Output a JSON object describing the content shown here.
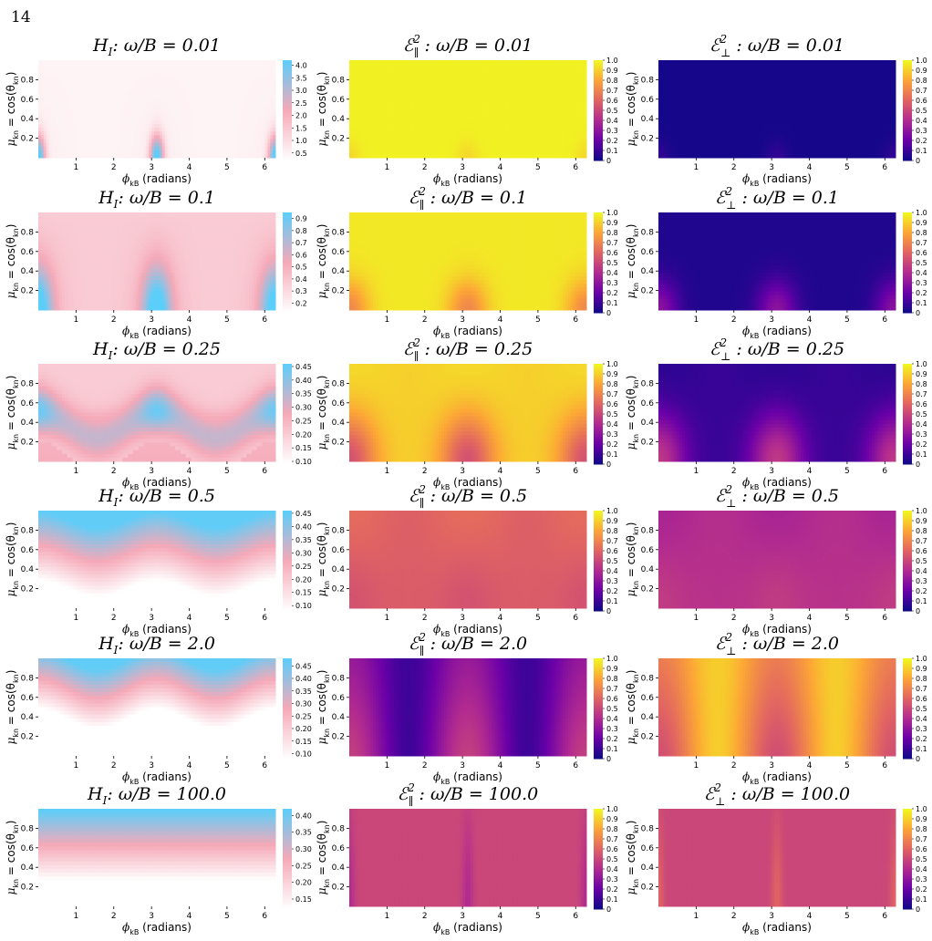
{
  "page": {
    "number": "14"
  },
  "colormaps": {
    "hi": [
      "#ffffff",
      "#f5a9b8",
      "#5bcefa"
    ],
    "plasma": [
      "#0d0887",
      "#6a00a8",
      "#b12a90",
      "#e16462",
      "#fca636",
      "#f0f921"
    ]
  },
  "chart_data": [
    {
      "type": "heatmap",
      "row": 0,
      "col": 0,
      "quantity": "H_I",
      "title": {
        "symbol": "H",
        "sub": "I",
        "rest": ":  ω/B = 0.01"
      },
      "xlabel": {
        "symbol": "ϕ",
        "sub": "kB",
        "text": "(radians)"
      },
      "ylabel": {
        "symbol": "μ",
        "sub": "kn",
        "text": "= cos(θ",
        "sub2": "kn",
        "close": ")"
      },
      "x_ticks": [
        "1",
        "2",
        "3",
        "4",
        "5",
        "6"
      ],
      "y_ticks": [
        "0.2",
        "0.4",
        "0.6",
        "0.8"
      ],
      "cbar_ticks": [
        "4.0",
        "3.5",
        "3.0",
        "2.5",
        "2.0",
        "1.5",
        "1.0",
        "0.5"
      ],
      "cbar_range": [
        0.2,
        4.2
      ],
      "colormap": "hi",
      "pattern": "hi",
      "params": {
        "base": 0.07,
        "wave": 0.02,
        "spot": 1.0,
        "sx": 0.12,
        "sy": 0.16,
        "amp": 0,
        "center": 0.5,
        "width": 0.1
      }
    },
    {
      "type": "heatmap",
      "row": 0,
      "col": 1,
      "quantity": "E_par^2",
      "title": {
        "symbol": "ℰ",
        "sup": "2",
        "sub": "∥",
        "rest": ":  ω/B = 0.01"
      },
      "xlabel": {
        "symbol": "ϕ",
        "sub": "kB",
        "text": "(radians)"
      },
      "ylabel": {
        "symbol": "μ",
        "sub": "kn",
        "text": "= cos(θ",
        "sub2": "kn",
        "close": ")"
      },
      "x_ticks": [
        "1",
        "2",
        "3",
        "4",
        "5",
        "6"
      ],
      "y_ticks": [
        "0.2",
        "0.4",
        "0.6",
        "0.8"
      ],
      "cbar_ticks": [
        "1.0",
        "0.9",
        "0.8",
        "0.7",
        "0.6",
        "0.5",
        "0.4",
        "0.3",
        "0.2",
        "0.1",
        "0"
      ],
      "cbar_range": [
        0,
        1
      ],
      "colormap": "plasma",
      "pattern": "pl",
      "params": {
        "base": 0.98,
        "dip": 0.06,
        "sx": 0.1,
        "sy": 0.12,
        "gbase": 0,
        "gamp": 0,
        "w": 0.3
      }
    },
    {
      "type": "heatmap",
      "row": 0,
      "col": 2,
      "quantity": "E_perp^2",
      "title": {
        "symbol": "ℰ",
        "sup": "2",
        "sub": "⊥",
        "rest": ":  ω/B = 0.01"
      },
      "xlabel": {
        "symbol": "ϕ",
        "sub": "kB",
        "text": "(radians)"
      },
      "ylabel": {
        "symbol": "μ",
        "sub": "kn",
        "text": "= cos(θ",
        "sub2": "kn",
        "close": ")"
      },
      "x_ticks": [
        "1",
        "2",
        "3",
        "4",
        "5",
        "6"
      ],
      "y_ticks": [
        "0.2",
        "0.4",
        "0.6",
        "0.8"
      ],
      "cbar_ticks": [
        "1.0",
        "0.9",
        "0.8",
        "0.7",
        "0.6",
        "0.5",
        "0.4",
        "0.3",
        "0.2",
        "0.1",
        "0"
      ],
      "cbar_range": [
        0,
        1
      ],
      "colormap": "plasma",
      "pattern": "pl",
      "params": {
        "base": 0.02,
        "dip": -0.06,
        "sx": 0.1,
        "sy": 0.12,
        "gbase": 0,
        "gamp": 0,
        "w": 0.3
      }
    },
    {
      "type": "heatmap",
      "row": 1,
      "col": 0,
      "quantity": "H_I",
      "title": {
        "symbol": "H",
        "sub": "I",
        "rest": ":  ω/B = 0.1"
      },
      "xlabel": {
        "symbol": "ϕ",
        "sub": "kB",
        "text": "(radians)"
      },
      "ylabel": {
        "symbol": "μ",
        "sub": "kn",
        "text": "= cos(θ",
        "sub2": "kn",
        "close": ")"
      },
      "x_ticks": [
        "1",
        "2",
        "3",
        "4",
        "5",
        "6"
      ],
      "y_ticks": [
        "0.2",
        "0.4",
        "0.6",
        "0.8"
      ],
      "cbar_ticks": [
        "0.9",
        "0.8",
        "0.7",
        "0.6",
        "0.5",
        "0.4",
        "0.3",
        "0.2"
      ],
      "cbar_range": [
        0.12,
        0.95
      ],
      "colormap": "hi",
      "pattern": "hi",
      "params": {
        "base": 0.3,
        "wave": 0.12,
        "spot": 0.75,
        "sx": 0.25,
        "sy": 0.3,
        "amp": 0,
        "center": 0.5,
        "width": 0.1
      }
    },
    {
      "type": "heatmap",
      "row": 1,
      "col": 1,
      "quantity": "E_par^2",
      "title": {
        "symbol": "ℰ",
        "sup": "2",
        "sub": "∥",
        "rest": ":  ω/B = 0.1"
      },
      "xlabel": {
        "symbol": "ϕ",
        "sub": "kB",
        "text": "(radians)"
      },
      "ylabel": {
        "symbol": "μ",
        "sub": "kn",
        "text": "= cos(θ",
        "sub2": "kn",
        "close": ")"
      },
      "x_ticks": [
        "1",
        "2",
        "3",
        "4",
        "5",
        "6"
      ],
      "y_ticks": [
        "0.2",
        "0.4",
        "0.6",
        "0.8"
      ],
      "cbar_ticks": [
        "1.0",
        "0.9",
        "0.8",
        "0.7",
        "0.6",
        "0.5",
        "0.4",
        "0.3",
        "0.2",
        "0.1",
        "0"
      ],
      "cbar_range": [
        0,
        1
      ],
      "colormap": "plasma",
      "pattern": "pl",
      "params": {
        "base": 0.96,
        "dip": 0.25,
        "sx": 0.18,
        "sy": 0.22,
        "gbase": 0,
        "gamp": 0,
        "w": 0.3
      }
    },
    {
      "type": "heatmap",
      "row": 1,
      "col": 2,
      "quantity": "E_perp^2",
      "title": {
        "symbol": "ℰ",
        "sup": "2",
        "sub": "⊥",
        "rest": ":  ω/B = 0.1"
      },
      "xlabel": {
        "symbol": "ϕ",
        "sub": "kB",
        "text": "(radians)"
      },
      "ylabel": {
        "symbol": "μ",
        "sub": "kn",
        "text": "= cos(θ",
        "sub2": "kn",
        "close": ")"
      },
      "x_ticks": [
        "1",
        "2",
        "3",
        "4",
        "5",
        "6"
      ],
      "y_ticks": [
        "0.2",
        "0.4",
        "0.6",
        "0.8"
      ],
      "cbar_ticks": [
        "1.0",
        "0.9",
        "0.8",
        "0.7",
        "0.6",
        "0.5",
        "0.4",
        "0.3",
        "0.2",
        "0.1",
        "0"
      ],
      "cbar_range": [
        0,
        1
      ],
      "colormap": "plasma",
      "pattern": "pl",
      "params": {
        "base": 0.04,
        "dip": -0.25,
        "sx": 0.18,
        "sy": 0.22,
        "gbase": 0,
        "gamp": 0,
        "w": 0.3
      }
    },
    {
      "type": "heatmap",
      "row": 2,
      "col": 0,
      "quantity": "H_I",
      "title": {
        "symbol": "H",
        "sub": "I",
        "rest": ":  ω/B = 0.25"
      },
      "xlabel": {
        "symbol": "ϕ",
        "sub": "kB",
        "text": "(radians)"
      },
      "ylabel": {
        "symbol": "μ",
        "sub": "kn",
        "text": "= cos(θ",
        "sub2": "kn",
        "close": ")"
      },
      "x_ticks": [
        "1",
        "2",
        "3",
        "4",
        "5",
        "6"
      ],
      "y_ticks": [
        "0.2",
        "0.4",
        "0.6",
        "0.8"
      ],
      "cbar_ticks": [
        "0.45",
        "0.40",
        "0.35",
        "0.30",
        "0.25",
        "0.20",
        "0.15",
        "0.10"
      ],
      "cbar_range": [
        0.09,
        0.46
      ],
      "colormap": "hi",
      "pattern": "band",
      "params": {
        "center": 0.38,
        "amp": 0.14,
        "width": 0.16,
        "top": 0.7,
        "bottom": 0.45,
        "low": 0.3,
        "high": 0.95
      }
    },
    {
      "type": "heatmap",
      "row": 2,
      "col": 1,
      "quantity": "E_par^2",
      "title": {
        "symbol": "ℰ",
        "sup": "2",
        "sub": "∥",
        "rest": ":  ω/B = 0.25"
      },
      "xlabel": {
        "symbol": "ϕ",
        "sub": "kB",
        "text": "(radians)"
      },
      "ylabel": {
        "symbol": "μ",
        "sub": "kn",
        "text": "= cos(θ",
        "sub2": "kn",
        "close": ")"
      },
      "x_ticks": [
        "1",
        "2",
        "3",
        "4",
        "5",
        "6"
      ],
      "y_ticks": [
        "0.2",
        "0.4",
        "0.6",
        "0.8"
      ],
      "cbar_ticks": [
        "1.0",
        "0.9",
        "0.8",
        "0.7",
        "0.6",
        "0.5",
        "0.4",
        "0.3",
        "0.2",
        "0.1",
        "0"
      ],
      "cbar_range": [
        0,
        1
      ],
      "colormap": "plasma",
      "pattern": "pl",
      "params": {
        "base": 0.9,
        "dip": 0.4,
        "sx": 0.25,
        "sy": 0.35,
        "gbase": 0.02,
        "gamp": 0.02,
        "w": 0.3
      }
    },
    {
      "type": "heatmap",
      "row": 2,
      "col": 2,
      "quantity": "E_perp^2",
      "title": {
        "symbol": "ℰ",
        "sup": "2",
        "sub": "⊥",
        "rest": ":  ω/B = 0.25"
      },
      "xlabel": {
        "symbol": "ϕ",
        "sub": "kB",
        "text": "(radians)"
      },
      "ylabel": {
        "symbol": "μ",
        "sub": "kn",
        "text": "= cos(θ",
        "sub2": "kn",
        "close": ")"
      },
      "x_ticks": [
        "1",
        "2",
        "3",
        "4",
        "5",
        "6"
      ],
      "y_ticks": [
        "0.2",
        "0.4",
        "0.6",
        "0.8"
      ],
      "cbar_ticks": [
        "1.0",
        "0.9",
        "0.8",
        "0.7",
        "0.6",
        "0.5",
        "0.4",
        "0.3",
        "0.2",
        "0.1",
        "0"
      ],
      "cbar_range": [
        0,
        1
      ],
      "colormap": "plasma",
      "pattern": "pl",
      "params": {
        "base": 0.09,
        "dip": -0.4,
        "sx": 0.25,
        "sy": 0.35,
        "gbase": -0.02,
        "gamp": -0.02,
        "w": 0.3
      }
    },
    {
      "type": "heatmap",
      "row": 3,
      "col": 0,
      "quantity": "H_I",
      "title": {
        "symbol": "H",
        "sub": "I",
        "rest": ":  ω/B = 0.5"
      },
      "xlabel": {
        "symbol": "ϕ",
        "sub": "kB",
        "text": "(radians)"
      },
      "ylabel": {
        "symbol": "μ",
        "sub": "kn",
        "text": "= cos(θ",
        "sub2": "kn",
        "close": ")"
      },
      "x_ticks": [
        "1",
        "2",
        "3",
        "4",
        "5",
        "6"
      ],
      "y_ticks": [
        "0.2",
        "0.4",
        "0.6",
        "0.8"
      ],
      "cbar_ticks": [
        "0.45",
        "0.40",
        "0.35",
        "0.30",
        "0.25",
        "0.20",
        "0.15",
        "0.10"
      ],
      "cbar_range": [
        0.08,
        0.46
      ],
      "colormap": "hi",
      "pattern": "grad",
      "params": {
        "center": 0.55,
        "amp": 0.08,
        "width": 0.35,
        "low": 0.0,
        "high": 0.98
      }
    },
    {
      "type": "heatmap",
      "row": 3,
      "col": 1,
      "quantity": "E_par^2",
      "title": {
        "symbol": "ℰ",
        "sup": "2",
        "sub": "∥",
        "rest": ":  ω/B = 0.5"
      },
      "xlabel": {
        "symbol": "ϕ",
        "sub": "kB",
        "text": "(radians)"
      },
      "ylabel": {
        "symbol": "μ",
        "sub": "kn",
        "text": "= cos(θ",
        "sub2": "kn",
        "close": ")"
      },
      "x_ticks": [
        "1",
        "2",
        "3",
        "4",
        "5",
        "6"
      ],
      "y_ticks": [
        "0.2",
        "0.4",
        "0.6",
        "0.8"
      ],
      "cbar_ticks": [
        "1.0",
        "0.9",
        "0.8",
        "0.7",
        "0.6",
        "0.5",
        "0.4",
        "0.3",
        "0.2",
        "0.1",
        "0"
      ],
      "cbar_range": [
        0,
        1
      ],
      "colormap": "plasma",
      "pattern": "pl",
      "params": {
        "base": 0.6,
        "dip": 0.12,
        "sx": 0.3,
        "sy": 0.5,
        "gbase": 0.02,
        "gamp": 0.04,
        "w": 0.3
      }
    },
    {
      "type": "heatmap",
      "row": 3,
      "col": 2,
      "quantity": "E_perp^2",
      "title": {
        "symbol": "ℰ",
        "sup": "2",
        "sub": "⊥",
        "rest": ":  ω/B = 0.5"
      },
      "xlabel": {
        "symbol": "ϕ",
        "sub": "kB",
        "text": "(radians)"
      },
      "ylabel": {
        "symbol": "μ",
        "sub": "kn",
        "text": "= cos(θ",
        "sub2": "kn",
        "close": ")"
      },
      "x_ticks": [
        "1",
        "2",
        "3",
        "4",
        "5",
        "6"
      ],
      "y_ticks": [
        "0.2",
        "0.4",
        "0.6",
        "0.8"
      ],
      "cbar_ticks": [
        "1.0",
        "0.9",
        "0.8",
        "0.7",
        "0.6",
        "0.5",
        "0.4",
        "0.3",
        "0.2",
        "0.1",
        "0"
      ],
      "cbar_range": [
        0,
        1
      ],
      "colormap": "plasma",
      "pattern": "pl",
      "params": {
        "base": 0.4,
        "dip": -0.12,
        "sx": 0.3,
        "sy": 0.5,
        "gbase": -0.02,
        "gamp": -0.04,
        "w": 0.3
      }
    },
    {
      "type": "heatmap",
      "row": 4,
      "col": 0,
      "quantity": "H_I",
      "title": {
        "symbol": "H",
        "sub": "I",
        "rest": ":  ω/B = 2.0"
      },
      "xlabel": {
        "symbol": "ϕ",
        "sub": "kB",
        "text": "(radians)"
      },
      "ylabel": {
        "symbol": "μ",
        "sub": "kn",
        "text": "= cos(θ",
        "sub2": "kn",
        "close": ")"
      },
      "x_ticks": [
        "1",
        "2",
        "3",
        "4",
        "5",
        "6"
      ],
      "y_ticks": [
        "0.2",
        "0.4",
        "0.6",
        "0.8"
      ],
      "cbar_ticks": [
        "0.45",
        "0.40",
        "0.35",
        "0.30",
        "0.25",
        "0.20",
        "0.15",
        "0.10"
      ],
      "cbar_range": [
        0.08,
        0.48
      ],
      "colormap": "hi",
      "pattern": "grad",
      "params": {
        "center": 0.68,
        "amp": 0.1,
        "width": 0.3,
        "low": 0.0,
        "high": 0.98
      }
    },
    {
      "type": "heatmap",
      "row": 4,
      "col": 1,
      "quantity": "E_par^2",
      "title": {
        "symbol": "ℰ",
        "sup": "2",
        "sub": "∥",
        "rest": ":  ω/B = 2.0"
      },
      "xlabel": {
        "symbol": "ϕ",
        "sub": "kB",
        "text": "(radians)"
      },
      "ylabel": {
        "symbol": "μ",
        "sub": "kn",
        "text": "= cos(θ",
        "sub2": "kn",
        "close": ")"
      },
      "x_ticks": [
        "1",
        "2",
        "3",
        "4",
        "5",
        "6"
      ],
      "y_ticks": [
        "0.2",
        "0.4",
        "0.6",
        "0.8"
      ],
      "cbar_ticks": [
        "1.0",
        "0.9",
        "0.8",
        "0.7",
        "0.6",
        "0.5",
        "0.4",
        "0.3",
        "0.2",
        "0.1",
        "0"
      ],
      "cbar_range": [
        0,
        1
      ],
      "colormap": "plasma",
      "pattern": "pl",
      "params": {
        "base": 0.14,
        "dip": -0.08,
        "sx": 0.4,
        "sy": 0.5,
        "gbase": 0.1,
        "gamp": 0.15,
        "w": 0.35
      }
    },
    {
      "type": "heatmap",
      "row": 4,
      "col": 2,
      "quantity": "E_perp^2",
      "title": {
        "symbol": "ℰ",
        "sup": "2",
        "sub": "⊥",
        "rest": ":  ω/B = 2.0"
      },
      "xlabel": {
        "symbol": "ϕ",
        "sub": "kB",
        "text": "(radians)"
      },
      "ylabel": {
        "symbol": "μ",
        "sub": "kn",
        "text": "= cos(θ",
        "sub2": "kn",
        "close": ")"
      },
      "x_ticks": [
        "1",
        "2",
        "3",
        "4",
        "5",
        "6"
      ],
      "y_ticks": [
        "0.2",
        "0.4",
        "0.6",
        "0.8"
      ],
      "cbar_ticks": [
        "1.0",
        "0.9",
        "0.8",
        "0.7",
        "0.6",
        "0.5",
        "0.4",
        "0.3",
        "0.2",
        "0.1",
        "0"
      ],
      "cbar_range": [
        0,
        1
      ],
      "colormap": "plasma",
      "pattern": "pl",
      "params": {
        "base": 0.86,
        "dip": 0.08,
        "sx": 0.4,
        "sy": 0.5,
        "gbase": -0.1,
        "gamp": -0.15,
        "w": 0.35
      }
    },
    {
      "type": "heatmap",
      "row": 5,
      "col": 0,
      "quantity": "H_I",
      "title": {
        "symbol": "H",
        "sub": "I",
        "rest": ":  ω/B = 100.0"
      },
      "xlabel": {
        "symbol": "ϕ",
        "sub": "kB",
        "text": "(radians)"
      },
      "ylabel": {
        "symbol": "μ",
        "sub": "kn",
        "text": "= cos(θ",
        "sub2": "kn",
        "close": ")"
      },
      "x_ticks": [
        "1",
        "2",
        "3",
        "4",
        "5",
        "6"
      ],
      "y_ticks": [
        "0.2",
        "0.4",
        "0.6",
        "0.8"
      ],
      "cbar_ticks": [
        "0.40",
        "0.35",
        "0.30",
        "0.25",
        "0.20",
        "0.15"
      ],
      "cbar_range": [
        0.12,
        0.42
      ],
      "colormap": "hi",
      "pattern": "grad",
      "params": {
        "center": 0.62,
        "amp": 0.0,
        "width": 0.35,
        "low": 0.0,
        "high": 0.98
      }
    },
    {
      "type": "heatmap",
      "row": 5,
      "col": 1,
      "quantity": "E_par^2",
      "title": {
        "symbol": "ℰ",
        "sup": "2",
        "sub": "∥",
        "rest": ":  ω/B = 100.0"
      },
      "xlabel": {
        "symbol": "ϕ",
        "sub": "kB",
        "text": "(radians)"
      },
      "ylabel": {
        "symbol": "μ",
        "sub": "kn",
        "text": "= cos(θ",
        "sub2": "kn",
        "close": ")"
      },
      "x_ticks": [
        "1",
        "2",
        "3",
        "4",
        "5",
        "6"
      ],
      "y_ticks": [
        "0.2",
        "0.4",
        "0.6",
        "0.8"
      ],
      "cbar_ticks": [
        "1.0",
        "0.9",
        "0.8",
        "0.7",
        "0.6",
        "0.5",
        "0.4",
        "0.3",
        "0.2",
        "0.1",
        "0"
      ],
      "cbar_range": [
        0,
        1
      ],
      "colormap": "plasma",
      "pattern": "pl",
      "params": {
        "base": 0.5,
        "dip": 0.1,
        "sx": 0.05,
        "sy": 0.6,
        "gbase": 0,
        "gamp": 0,
        "w": 0.3
      }
    },
    {
      "type": "heatmap",
      "row": 5,
      "col": 2,
      "quantity": "E_perp^2",
      "title": {
        "symbol": "ℰ",
        "sup": "2",
        "sub": "⊥",
        "rest": ":  ω/B = 100.0"
      },
      "xlabel": {
        "symbol": "ϕ",
        "sub": "kB",
        "text": "(radians)"
      },
      "ylabel": {
        "symbol": "μ",
        "sub": "kn",
        "text": "= cos(θ",
        "sub2": "kn",
        "close": ")"
      },
      "x_ticks": [
        "1",
        "2",
        "3",
        "4",
        "5",
        "6"
      ],
      "y_ticks": [
        "0.2",
        "0.4",
        "0.6",
        "0.8"
      ],
      "cbar_ticks": [
        "1.0",
        "0.9",
        "0.8",
        "0.7",
        "0.6",
        "0.5",
        "0.4",
        "0.3",
        "0.2",
        "0.1",
        "0"
      ],
      "cbar_range": [
        0,
        1
      ],
      "colormap": "plasma",
      "pattern": "pl",
      "params": {
        "base": 0.5,
        "dip": -0.1,
        "sx": 0.05,
        "sy": 0.6,
        "gbase": 0,
        "gamp": 0,
        "w": 0.3
      }
    }
  ]
}
